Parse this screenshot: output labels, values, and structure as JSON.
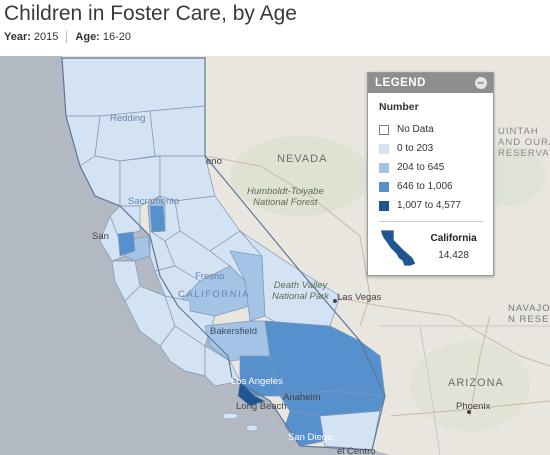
{
  "title": "Children in Foster Care, by Age",
  "filters": {
    "year_label": "Year:",
    "year_value": "2015",
    "age_label": "Age:",
    "age_value": "16-20"
  },
  "legend": {
    "header": "LEGEND",
    "collapse_glyph": "–",
    "label": "Number",
    "items": [
      {
        "label": "No Data",
        "color": "#ffffff"
      },
      {
        "label": "0 to 203",
        "color": "#d4e3f3"
      },
      {
        "label": "204 to 645",
        "color": "#a4c4e6"
      },
      {
        "label": "646 to 1,006",
        "color": "#5690cd"
      },
      {
        "label": "1,007 to 4,577",
        "color": "#1f5691"
      }
    ],
    "total_name": "California",
    "total_value": "14,428"
  },
  "map_labels": {
    "nevada": "NEVADA",
    "arizona": "ARIZONA",
    "california": "CALIFORNIA",
    "humboldt": "Humboldt-Toiyabe\nNational Forest",
    "death_valley": "Death Valley\nNational Park",
    "las_vegas": "Las Vegas",
    "bakersfield": "Bakersfield",
    "los_angeles": "Los Angeles",
    "long_beach": "Long Beach",
    "anaheim": "Anaheim",
    "san_diego": "San Diego",
    "phoenix": "Phoenix",
    "el_centro": "el Centro",
    "navajo": "NAVAJO\nN RESERV",
    "uintah": "UINTAH\nAND OURAY\nRESERVATION",
    "reno": "eno",
    "fresno": "Fresno",
    "redding": "Redding",
    "sacramento": "Sacramento",
    "san_francisco": "San"
  }
}
